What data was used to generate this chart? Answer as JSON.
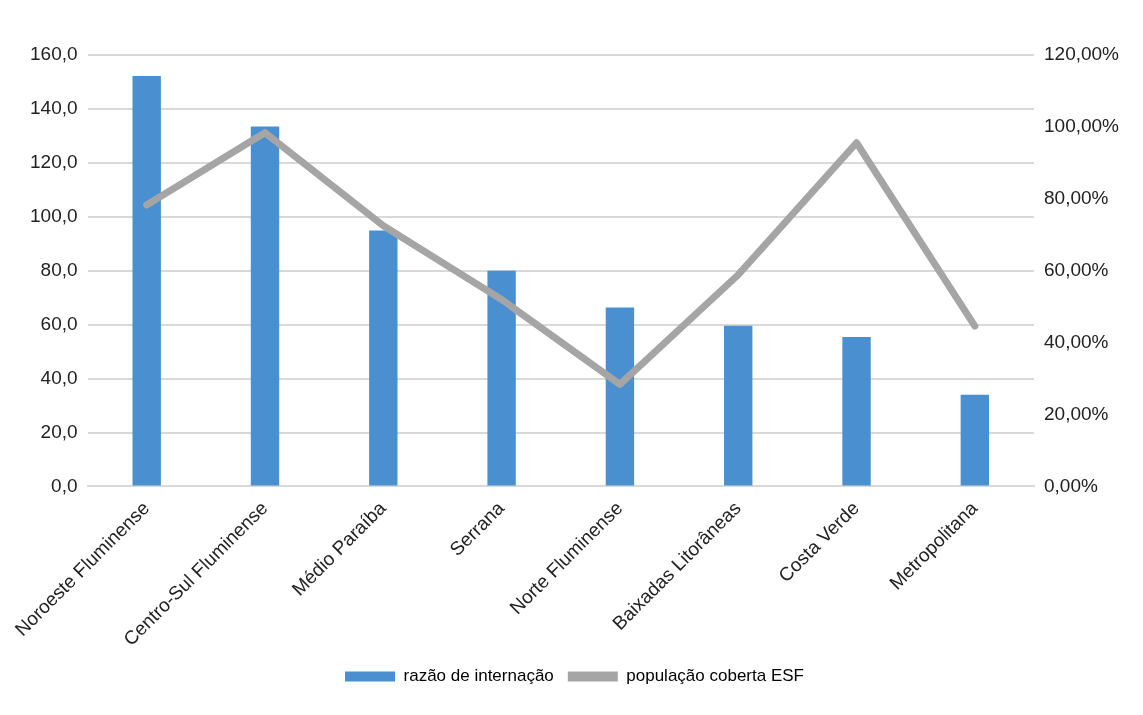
{
  "chart_data": {
    "type": "bar",
    "categories": [
      "Noroeste Fluminense",
      "Centro-Sul Fluminense",
      "Médio Paraíba",
      "Serrana",
      "Norte Fluminense",
      "Baixadas Litorâneas",
      "Costa Verde",
      "Metropolitana"
    ],
    "series": [
      {
        "name": "razão de internação",
        "color": "#4a90d0",
        "values": [
          152.2,
          133.5,
          94.9,
          80.0,
          66.4,
          59.6,
          55.4,
          34.0
        ]
      },
      {
        "name": "população coberta ESF",
        "type": "line",
        "axis": "y2",
        "color": "#a5a5a5",
        "values": [
          78.3,
          98.4,
          72.5,
          52.0,
          28.4,
          58.9,
          95.6,
          44.6
        ]
      }
    ],
    "ylim": [
      0,
      160
    ],
    "yticks": [
      {
        "value": 0,
        "label": "0,0"
      },
      {
        "value": 20,
        "label": "20,0"
      },
      {
        "value": 40,
        "label": "40,0"
      },
      {
        "value": 60,
        "label": "60,0"
      },
      {
        "value": 80,
        "label": "80,0"
      },
      {
        "value": 100,
        "label": "100,0"
      },
      {
        "value": 120,
        "label": "120,0"
      },
      {
        "value": 140,
        "label": "140,0"
      },
      {
        "value": 160,
        "label": "160,0"
      }
    ],
    "y2lim": [
      0,
      120
    ],
    "y2ticks": [
      {
        "value": 0,
        "label": "0,00%"
      },
      {
        "value": 20,
        "label": "20,00%"
      },
      {
        "value": 40,
        "label": "40,00%"
      },
      {
        "value": 60,
        "label": "60,00%"
      },
      {
        "value": 80,
        "label": "80,00%"
      },
      {
        "value": 100,
        "label": "100,00%"
      },
      {
        "value": 120,
        "label": "120,00%"
      }
    ],
    "grid": "y",
    "legend": "bottom",
    "marker": "none",
    "line_style": "solid"
  }
}
